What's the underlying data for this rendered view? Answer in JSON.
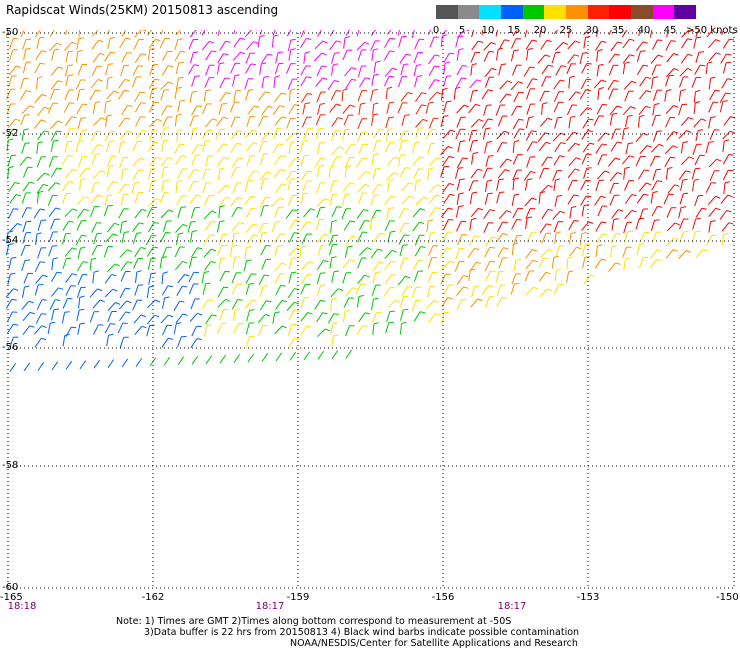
{
  "title": "Rapidscat Winds(25KM) 20150813 ascending",
  "colorbar": {
    "labels": [
      "0",
      "5",
      "10",
      "15",
      "20",
      "25",
      "30",
      "35",
      "40",
      "45",
      ">50 knots"
    ],
    "colors": [
      "#555555",
      "#8a8a8a",
      "#00e0ff",
      "#0060ff",
      "#00c800",
      "#ffe000",
      "#ff9000",
      "#ff2000",
      "#ff0000",
      "#8b4a2a",
      "#ff00ff",
      "#6000a0"
    ]
  },
  "axes": {
    "lon_ticks": [
      "-165",
      "-162",
      "-159",
      "-156",
      "-153",
      "-150"
    ],
    "lat_ticks": [
      "-50",
      "-52",
      "-54",
      "-56",
      "-58",
      "-60"
    ]
  },
  "times": [
    "18:18",
    "18:17",
    "18:17"
  ],
  "notes": [
    "Note: 1) Times are GMT 2)Times along bottom correspond to measurement at -50S",
    "3)Data buffer is 22 hrs from 20150813 4) Black wind barbs indicate possible contamination",
    "NOAA/NESDIS/Center for Satellite Applications and Research"
  ]
}
